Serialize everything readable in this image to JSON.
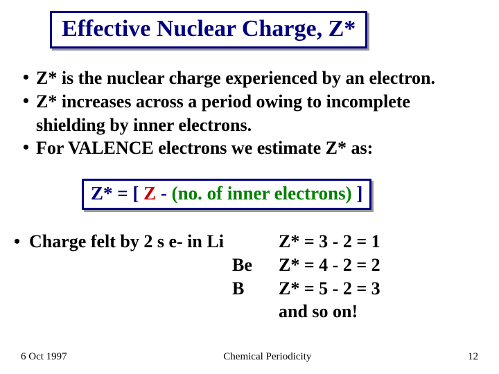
{
  "colors": {
    "navy": "#000080",
    "red": "#cc0000",
    "green": "#008000",
    "black": "#000000",
    "background": "#ffffff"
  },
  "title": "Effective Nuclear Charge, Z*",
  "bullets": [
    "Z* is the nuclear charge experienced by an electron.",
    "Z* increases across a period owing to incomplete shielding by inner electrons.",
    "For VALENCE electrons we estimate Z* as:"
  ],
  "formula": {
    "lhs": "Z*",
    "eq1": " = [ ",
    "z": "Z",
    "minus": " - ",
    "paren": "(no. of inner electrons)",
    "close": " ]"
  },
  "examples": {
    "intro": "Charge felt by 2 s e- in Li",
    "rows": [
      {
        "elem": "Li",
        "calc": "Z* = 3 - 2 = 1"
      },
      {
        "elem": "Be",
        "calc": "Z* = 4 - 2 = 2"
      },
      {
        "elem": "B",
        "calc": "Z* = 5 - 2 = 3"
      }
    ],
    "tail": "  and so on!"
  },
  "footer": {
    "date": "6 Oct 1997",
    "title": "Chemical Periodicity",
    "page": "12"
  }
}
